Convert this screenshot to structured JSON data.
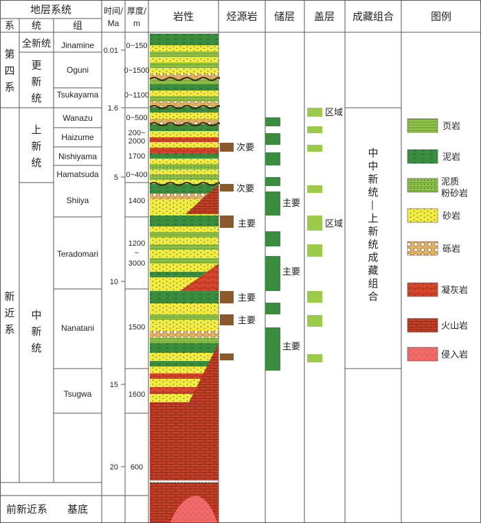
{
  "headers": {
    "strat_system": "地层系统",
    "system": "系",
    "series": "统",
    "group": "组",
    "time": "时间/",
    "time_unit": "Ma",
    "thickness": "厚度/",
    "thickness_unit": "m",
    "lithology": "岩性",
    "source_rock": "烃源岩",
    "reservoir": "储层",
    "cap_rock": "盖层",
    "accumulation": "成藏组合",
    "legend": "图例"
  },
  "systems": {
    "quaternary": [
      "第",
      "四",
      "系"
    ],
    "neogene": [
      "新",
      "近",
      "系"
    ],
    "pre_neogene": "前新近系"
  },
  "series_labels": {
    "holocene": "全新统",
    "pleistocene": [
      "更",
      "新",
      "统"
    ],
    "pliocene": [
      "上",
      "新",
      "统"
    ],
    "miocene": [
      "中",
      "新",
      "统"
    ]
  },
  "formations": [
    "Jinamine",
    "Oguni",
    "Tsukayama",
    "Wanazu",
    "Haizume",
    "Nishiyama",
    "Hamatsuda",
    "Shiiya",
    "Teradomari",
    "Nanatani",
    "Tsugwa"
  ],
  "basement": "基底",
  "time_ticks": [
    {
      "label": "0.01",
      "ma": 0.01
    },
    {
      "label": "1.6",
      "ma": 1.6
    },
    {
      "label": "5",
      "ma": 5
    },
    {
      "label": "10",
      "ma": 10
    },
    {
      "label": "15",
      "ma": 15
    },
    {
      "label": "20",
      "ma": 20
    }
  ],
  "thickness_labels": [
    "0~150",
    "0~1500",
    "0~1100",
    "0~500",
    "200~",
    "2000",
    "1700",
    "0~400",
    "1400",
    "1200",
    "~",
    "3000",
    "1500",
    "1600",
    "600"
  ],
  "source_rocks": [
    {
      "label": "次要",
      "rank": "secondary"
    },
    {
      "label": "次要",
      "rank": "secondary"
    },
    {
      "label": "主要",
      "rank": "primary"
    },
    {
      "label": "主要",
      "rank": "primary"
    },
    {
      "label": "主要",
      "rank": "primary"
    }
  ],
  "reservoir_labels": [
    "主要",
    "主要",
    "主要"
  ],
  "cap_labels": [
    "区域",
    "区域"
  ],
  "accumulation_text": [
    "中",
    "中",
    "新",
    "统",
    "—",
    "上",
    "新",
    "统",
    "成",
    "藏",
    "组",
    "合"
  ],
  "legend": [
    {
      "label": "页岩",
      "pattern": "shale"
    },
    {
      "label": "泥岩",
      "pattern": "mudstone"
    },
    {
      "label": "泥质",
      "label2": "粉砂岩",
      "pattern": "silt"
    },
    {
      "label": "砂岩",
      "pattern": "sand"
    },
    {
      "label": "砾岩",
      "pattern": "gravel"
    },
    {
      "label": "凝灰岩",
      "pattern": "tuff"
    },
    {
      "label": "火山岩",
      "pattern": "volcanic"
    },
    {
      "label": "侵入岩",
      "pattern": "intrusive"
    }
  ],
  "colors": {
    "shale": "#8fc34a",
    "mudstone": "#3a8c3f",
    "sand": "#f1ec3d",
    "gravel": "#e3b060",
    "tuff": "#d8462c",
    "volcanic": "#cf3a24",
    "intrusive": "#f06a6a",
    "source": "#8a5a2b",
    "reservoir": "#3a8c3f",
    "cap": "#9ccb4a"
  }
}
